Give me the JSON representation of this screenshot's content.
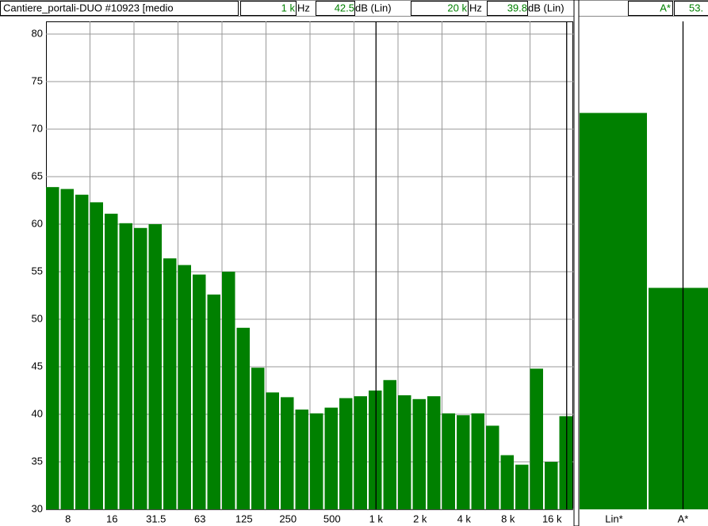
{
  "header": {
    "title": "Cantiere_portali-DUO #10923 [medio",
    "cursor1": {
      "freq": "1 k",
      "freq_unit": "Hz",
      "level": "42.5",
      "level_unit": "dB (Lin)"
    },
    "cursor2": {
      "freq": "20 k",
      "freq_unit": "Hz",
      "level": "39.8",
      "level_unit": "dB (Lin)"
    },
    "overall": {
      "weighting": "A*",
      "level": "53."
    }
  },
  "chart_data": [
    {
      "type": "bar",
      "color": "#008000",
      "grid": true,
      "categories": [
        null,
        "8",
        null,
        null,
        "16",
        null,
        null,
        "31.5",
        null,
        null,
        "63",
        null,
        null,
        "125",
        null,
        null,
        "250",
        null,
        null,
        "500",
        null,
        null,
        "1 k",
        null,
        null,
        "2 k",
        null,
        null,
        "4 k",
        null,
        null,
        "8 k",
        null,
        null,
        "16 k",
        null
      ],
      "values": [
        63.9,
        63.7,
        63.1,
        62.3,
        61.1,
        60.1,
        59.6,
        60.0,
        56.4,
        55.7,
        54.7,
        52.6,
        55.0,
        49.1,
        44.9,
        42.3,
        41.8,
        40.5,
        40.1,
        40.7,
        41.7,
        41.9,
        42.5,
        43.6,
        42.0,
        41.6,
        41.9,
        40.1,
        39.9,
        40.1,
        38.8,
        35.7,
        34.7,
        44.8,
        35.0,
        39.8
      ],
      "ylim": [
        30,
        81.33
      ],
      "yticks": [
        30,
        35,
        40,
        45,
        50,
        55,
        60,
        65,
        70,
        75,
        80
      ]
    },
    {
      "type": "bar",
      "color": "#008000",
      "categories": [
        "Lin*",
        "A*"
      ],
      "values": [
        71.7,
        53.3
      ],
      "ylim": [
        30,
        81.33
      ]
    }
  ]
}
